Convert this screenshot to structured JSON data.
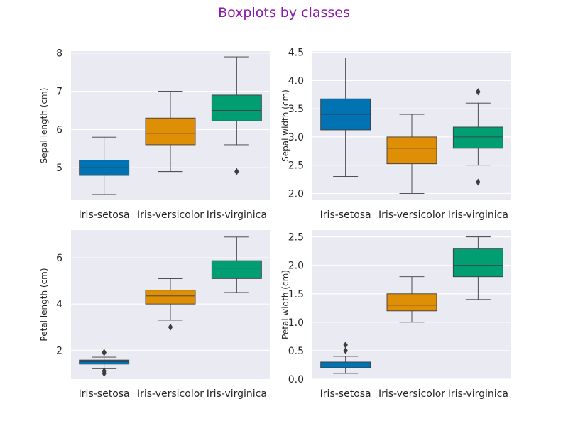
{
  "title": "Boxplots by classes",
  "title_color": "#8b1ba8",
  "chart_data": [
    {
      "type": "box",
      "ylabel": "Sepal length (cm)",
      "ylim": [
        4.15,
        8.05
      ],
      "yticks": [
        5,
        6,
        7,
        8
      ],
      "tick_labels": [
        "5",
        "6",
        "7",
        "8"
      ],
      "grid": true,
      "categories": [
        "Iris-setosa",
        "Iris-versicolor",
        "Iris-virginica"
      ],
      "boxes": [
        {
          "category": "Iris-setosa",
          "whisker_low": 4.3,
          "q1": 4.8,
          "median": 5.0,
          "q3": 5.2,
          "whisker_high": 5.8,
          "outliers": []
        },
        {
          "category": "Iris-versicolor",
          "whisker_low": 4.9,
          "q1": 5.6,
          "median": 5.9,
          "q3": 6.3,
          "whisker_high": 7.0,
          "outliers": []
        },
        {
          "category": "Iris-virginica",
          "whisker_low": 5.6,
          "q1": 6.225,
          "median": 6.5,
          "q3": 6.9,
          "whisker_high": 7.9,
          "outliers": [
            4.9
          ]
        }
      ]
    },
    {
      "type": "box",
      "ylabel": "Sepal width (cm)",
      "ylim": [
        1.88,
        4.52
      ],
      "yticks": [
        2.0,
        2.5,
        3.0,
        3.5,
        4.0,
        4.5
      ],
      "tick_labels": [
        "2.0",
        "2.5",
        "3.0",
        "3.5",
        "4.0",
        "4.5"
      ],
      "grid": true,
      "categories": [
        "Iris-setosa",
        "Iris-versicolor",
        "Iris-virginica"
      ],
      "boxes": [
        {
          "category": "Iris-setosa",
          "whisker_low": 2.3,
          "q1": 3.125,
          "median": 3.4,
          "q3": 3.675,
          "whisker_high": 4.4,
          "outliers": []
        },
        {
          "category": "Iris-versicolor",
          "whisker_low": 2.0,
          "q1": 2.525,
          "median": 2.8,
          "q3": 3.0,
          "whisker_high": 3.4,
          "outliers": []
        },
        {
          "category": "Iris-virginica",
          "whisker_low": 2.5,
          "q1": 2.8,
          "median": 3.0,
          "q3": 3.175,
          "whisker_high": 3.6,
          "outliers": [
            3.8,
            3.8,
            2.2
          ]
        }
      ]
    },
    {
      "type": "box",
      "ylabel": "Petal length (cm)",
      "ylim": [
        0.75,
        7.2
      ],
      "yticks": [
        2,
        4,
        6
      ],
      "tick_labels": [
        "2",
        "4",
        "6"
      ],
      "grid": true,
      "categories": [
        "Iris-setosa",
        "Iris-versicolor",
        "Iris-virginica"
      ],
      "boxes": [
        {
          "category": "Iris-setosa",
          "whisker_low": 1.2,
          "q1": 1.4,
          "median": 1.5,
          "q3": 1.575,
          "whisker_high": 1.7,
          "outliers": [
            1.9,
            1.9,
            1.1,
            1.0
          ]
        },
        {
          "category": "Iris-versicolor",
          "whisker_low": 3.3,
          "q1": 4.0,
          "median": 4.35,
          "q3": 4.6,
          "whisker_high": 5.1,
          "outliers": [
            3.0
          ]
        },
        {
          "category": "Iris-virginica",
          "whisker_low": 4.5,
          "q1": 5.1,
          "median": 5.55,
          "q3": 5.875,
          "whisker_high": 6.9,
          "outliers": []
        }
      ]
    },
    {
      "type": "box",
      "ylabel": "Petal width (cm)",
      "ylim": [
        0.0,
        2.62
      ],
      "yticks": [
        0.0,
        0.5,
        1.0,
        1.5,
        2.0,
        2.5
      ],
      "tick_labels": [
        "0.0",
        "0.5",
        "1.0",
        "1.5",
        "2.0",
        "2.5"
      ],
      "grid": true,
      "categories": [
        "Iris-setosa",
        "Iris-versicolor",
        "Iris-virginica"
      ],
      "boxes": [
        {
          "category": "Iris-setosa",
          "whisker_low": 0.1,
          "q1": 0.2,
          "median": 0.2,
          "q3": 0.3,
          "whisker_high": 0.4,
          "outliers": [
            0.6,
            0.5
          ]
        },
        {
          "category": "Iris-versicolor",
          "whisker_low": 1.0,
          "q1": 1.2,
          "median": 1.3,
          "q3": 1.5,
          "whisker_high": 1.8,
          "outliers": []
        },
        {
          "category": "Iris-virginica",
          "whisker_low": 1.4,
          "q1": 1.8,
          "median": 2.0,
          "q3": 2.3,
          "whisker_high": 2.5,
          "outliers": []
        }
      ]
    }
  ],
  "colors": {
    "Iris-setosa": "#0173b2",
    "Iris-versicolor": "#de8f05",
    "Iris-virginica": "#029e73",
    "plot_background": "#eaeaf2",
    "grid": "#ffffff",
    "lines": "#3d3d3d"
  }
}
